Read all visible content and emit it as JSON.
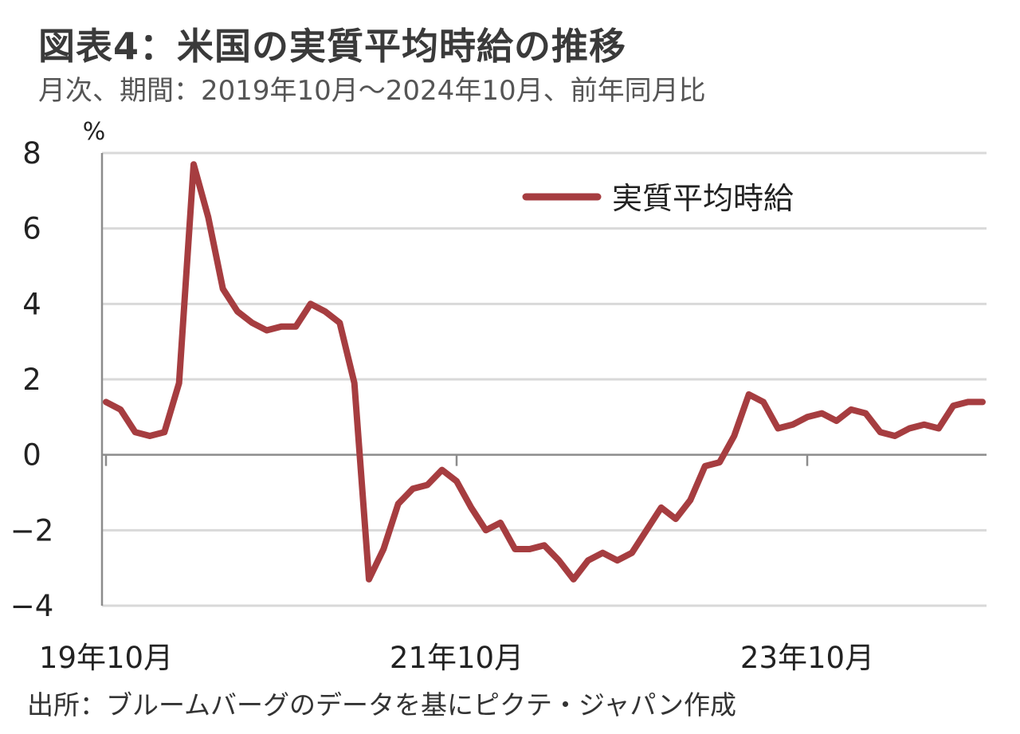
{
  "title": "図表4：米国の実質平均時給の推移",
  "subtitle": "月次、期間：2019年10月～2024年10月、前年同月比",
  "source": "出所：ブルームバーグのデータを基にピクテ・ジャパン作成",
  "colors": {
    "series": "#a63d40",
    "grid": "#d9d9d9",
    "axis": "#8c8c8c"
  },
  "chart_data": {
    "type": "line",
    "unit_label": "%",
    "ylim": [
      -4,
      8
    ],
    "y_ticks": [
      8,
      6,
      4,
      2,
      0,
      -2,
      -4
    ],
    "y_tick_labels": [
      "8",
      "6",
      "4",
      "2",
      "0",
      "−2",
      "−4"
    ],
    "grid": true,
    "legend_position": "top-right",
    "x_tick_labels": [
      {
        "label": "19年10月",
        "index": 0
      },
      {
        "label": "21年10月",
        "index": 24
      },
      {
        "label": "23年10月",
        "index": 48
      }
    ],
    "x_range": [
      "2019-10",
      "2024-10"
    ],
    "series": [
      {
        "name": "実質平均時給",
        "values": [
          1.4,
          1.2,
          0.6,
          0.5,
          0.6,
          1.9,
          7.7,
          6.3,
          4.4,
          3.8,
          3.5,
          3.3,
          3.4,
          3.4,
          4.0,
          3.8,
          3.5,
          1.9,
          -3.3,
          -2.5,
          -1.3,
          -0.9,
          -0.8,
          -0.4,
          -0.7,
          -1.4,
          -2.0,
          -1.8,
          -2.5,
          -2.5,
          -2.4,
          -2.8,
          -3.3,
          -2.8,
          -2.6,
          -2.8,
          -2.6,
          -2.0,
          -1.4,
          -1.7,
          -1.2,
          -0.3,
          -0.2,
          0.5,
          1.6,
          1.4,
          0.7,
          0.8,
          1.0,
          1.1,
          0.9,
          1.2,
          1.1,
          0.6,
          0.5,
          0.7,
          0.8,
          0.7,
          1.3,
          1.4,
          1.4
        ]
      }
    ]
  }
}
